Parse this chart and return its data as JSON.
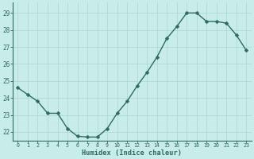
{
  "x": [
    0,
    1,
    2,
    3,
    4,
    5,
    6,
    7,
    8,
    9,
    10,
    11,
    12,
    13,
    14,
    15,
    16,
    17,
    18,
    19,
    20,
    21,
    22,
    23
  ],
  "y": [
    24.6,
    24.2,
    23.8,
    23.1,
    23.1,
    22.2,
    21.75,
    21.7,
    21.7,
    22.2,
    23.1,
    23.8,
    24.7,
    25.5,
    26.4,
    27.5,
    28.2,
    29.0,
    29.0,
    28.5,
    28.5,
    28.4,
    27.7,
    26.8
  ],
  "bg_color": "#c8ecea",
  "grid_color": "#b0d8d4",
  "line_color": "#2e6b5e",
  "marker_color": "#2e6b5e",
  "xlabel": "Humidex (Indice chaleur)",
  "ylim": [
    21.5,
    29.6
  ],
  "yticks": [
    22,
    23,
    24,
    25,
    26,
    27,
    28,
    29
  ],
  "xticks": [
    0,
    1,
    2,
    3,
    4,
    5,
    6,
    7,
    8,
    9,
    10,
    11,
    12,
    13,
    14,
    15,
    16,
    17,
    18,
    19,
    20,
    21,
    22,
    23
  ],
  "line_width": 1.0,
  "marker_size": 2.5
}
